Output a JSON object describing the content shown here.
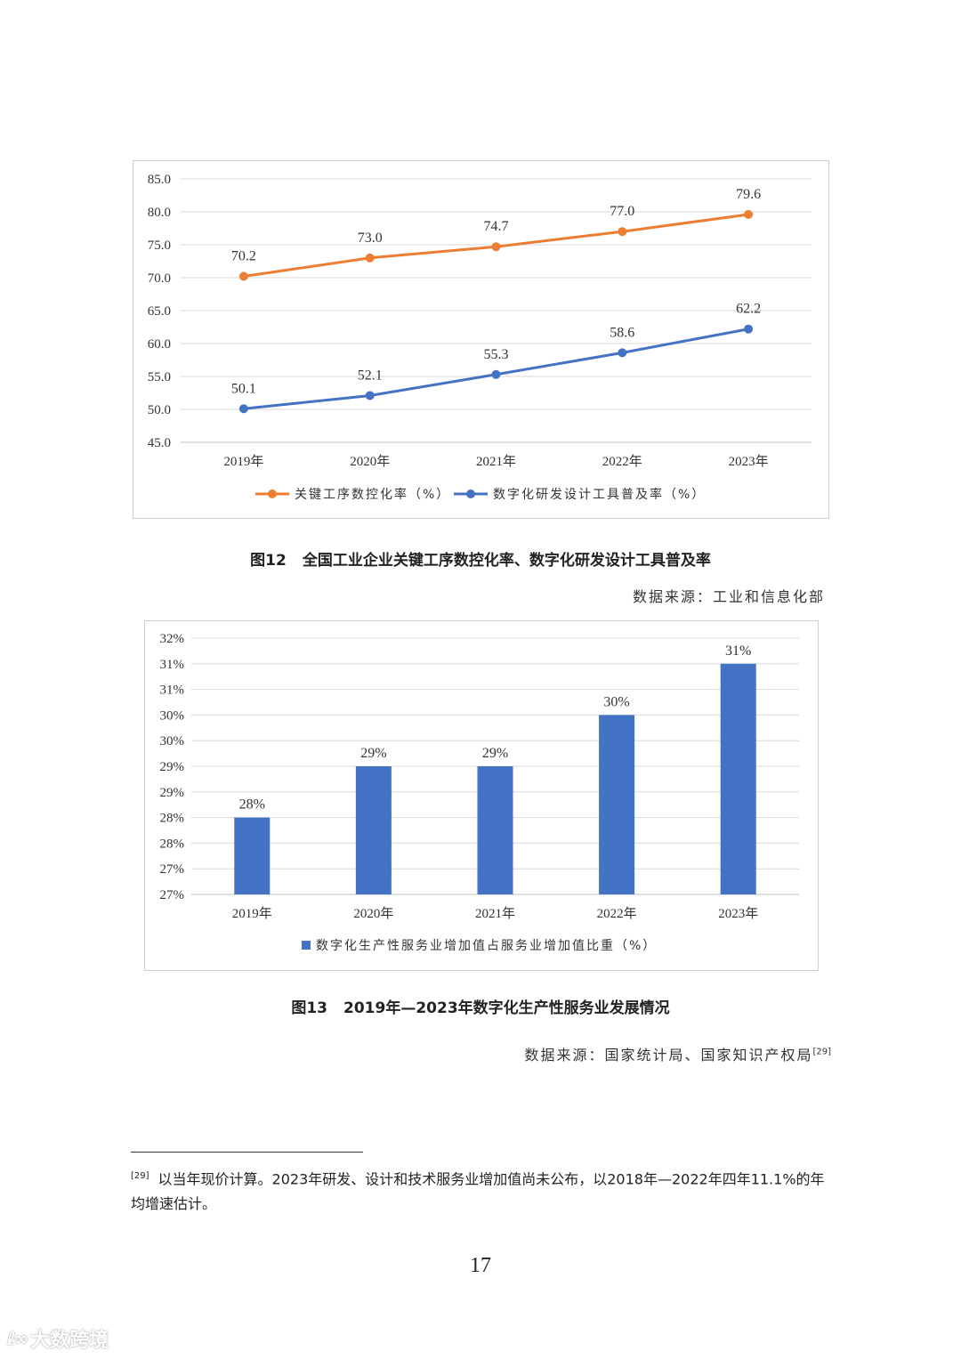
{
  "figure12": {
    "caption_number": "图12",
    "caption_text": "全国工业企业关键工序数控化率、数字化研发设计工具普及率",
    "source": "数据来源：工业和信息化部"
  },
  "figure13": {
    "caption_number": "图13",
    "caption_text": "2019年—2023年数字化生产性服务业发展情况",
    "source": "数据来源：国家统计局、国家知识产权局",
    "source_ref": "[29]"
  },
  "footnote": {
    "marker": "[29]",
    "text": "以当年现价计算。2023年研发、设计和技术服务业增加值尚未公布，以2018年—2022年四年11.1%的年均增速估计。"
  },
  "page_number": "17",
  "watermark": {
    "logo": "ℓ∞",
    "text": "大数跨境"
  },
  "chart_data": [
    {
      "type": "line",
      "categories": [
        "2019年",
        "2020年",
        "2021年",
        "2022年",
        "2023年"
      ],
      "ylim": [
        45,
        85
      ],
      "yticks": [
        "45.0",
        "50.0",
        "55.0",
        "60.0",
        "65.0",
        "70.0",
        "75.0",
        "80.0",
        "85.0"
      ],
      "grid": true,
      "legend": "bottom",
      "series": [
        {
          "name": "关键工序数控化率（%）",
          "values": [
            70.2,
            73.0,
            74.7,
            77.0,
            79.6
          ],
          "labels": [
            "70.2",
            "73.0",
            "74.7",
            "77.0",
            "79.6"
          ],
          "color": "#ed7d31"
        },
        {
          "name": "数字化研发设计工具普及率（%）",
          "values": [
            50.1,
            52.1,
            55.3,
            58.6,
            62.2
          ],
          "labels": [
            "50.1",
            "52.1",
            "55.3",
            "58.6",
            "62.2"
          ],
          "color": "#4472c4"
        }
      ]
    },
    {
      "type": "bar",
      "categories": [
        "2019年",
        "2020年",
        "2021年",
        "2022年",
        "2023年"
      ],
      "ylim": [
        0.265,
        0.315
      ],
      "yticks": [
        "27%",
        "27%",
        "28%",
        "28%",
        "29%",
        "29%",
        "30%",
        "30%",
        "31%",
        "31%",
        "32%"
      ],
      "grid": true,
      "legend": "bottom",
      "series": [
        {
          "name": "数字化生产性服务业增加值占服务业增加值比重（%）",
          "values": [
            0.28,
            0.29,
            0.29,
            0.3,
            0.31
          ],
          "labels": [
            "28%",
            "29%",
            "29%",
            "30%",
            "31%"
          ],
          "color": "#4472c4"
        }
      ]
    }
  ]
}
